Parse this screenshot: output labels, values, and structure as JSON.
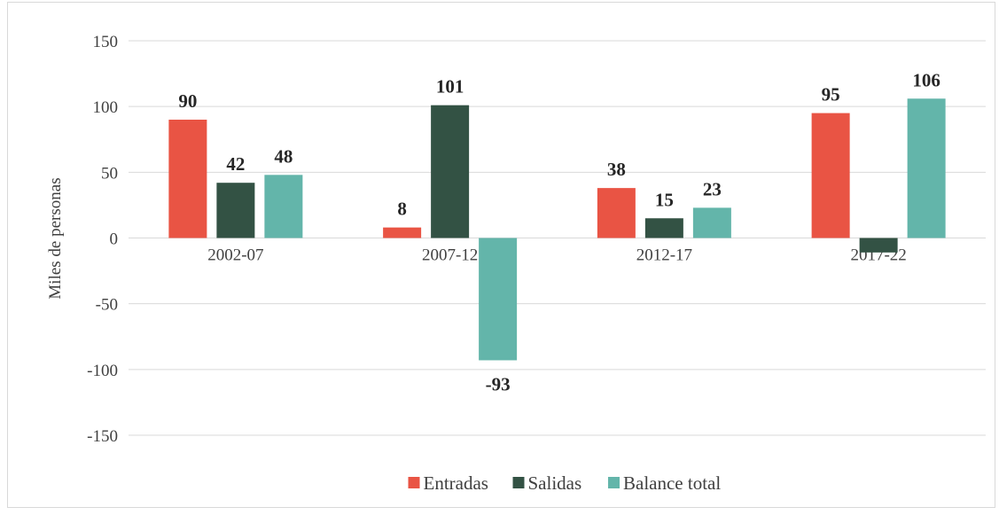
{
  "chart_data": {
    "type": "bar",
    "y_label": "Miles de personas",
    "categories": [
      "2002-07",
      "2007-12",
      "2012-17",
      "2017-22"
    ],
    "series": [
      {
        "name": "Entradas",
        "color": "#e95444",
        "values": [
          90,
          8,
          38,
          95
        ]
      },
      {
        "name": "Salidas",
        "color": "#335244",
        "values": [
          42,
          101,
          15,
          -11
        ],
        "value_labels": [
          42,
          101,
          15,
          null
        ]
      },
      {
        "name": "Balance total",
        "color": "#63b5aa",
        "values": [
          48,
          -93,
          23,
          106
        ]
      }
    ],
    "ylim": [
      -150,
      150
    ],
    "yticks": [
      -150,
      -100,
      -50,
      0,
      50,
      100,
      150
    ],
    "grid": true,
    "legend": "bottom"
  }
}
